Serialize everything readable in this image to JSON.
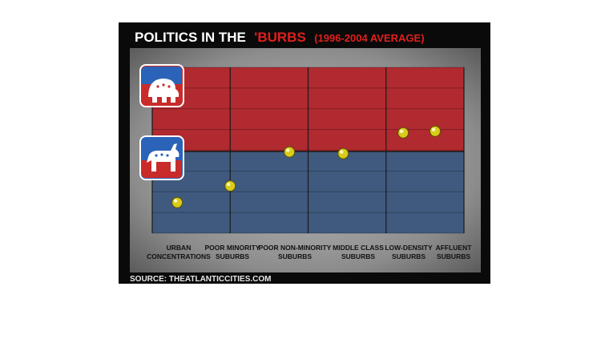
{
  "title_part1": "POLITICS IN THE",
  "title_part2": "'BURBS",
  "title_part3": "(1996-2004 AVERAGE)",
  "source": "SOURCE: THEATLANTICCITIES.COM",
  "colors": {
    "republican_zone": "#b02a30",
    "democrat_zone": "#3f5a7e",
    "marker": "#d9cc1a",
    "frame": "#0a0a0a"
  },
  "icons": [
    "republican-elephant-icon",
    "democrat-donkey-icon"
  ],
  "chart_data": {
    "type": "scatter",
    "title": "POLITICS IN THE 'BURBS (1996-2004 AVERAGE)",
    "categories": [
      [
        "URBAN",
        "CONCENTRATIONS"
      ],
      [
        "POOR MINORITY",
        "SUBURBS"
      ],
      [
        "POOR NON-MINORITY",
        "SUBURBS"
      ],
      [
        "MIDDLE CLASS",
        "SUBURBS"
      ],
      [
        "LOW-DENSITY",
        "SUBURBS"
      ],
      [
        "AFFLUENT",
        "SUBURBS"
      ]
    ],
    "points": [
      {
        "x": 0.32,
        "y": 0.37
      },
      {
        "x": 1.0,
        "y": 0.57
      },
      {
        "x": 1.76,
        "y": 0.98
      },
      {
        "x": 2.45,
        "y": 0.96
      },
      {
        "x": 3.22,
        "y": 1.21
      },
      {
        "x": 3.63,
        "y": 1.23
      }
    ],
    "xlim": [
      0,
      4
    ],
    "ylim": [
      0,
      2
    ],
    "threshold": 1,
    "grid": true,
    "legend": "icons at left: republican (top), democrat (bottom)"
  }
}
